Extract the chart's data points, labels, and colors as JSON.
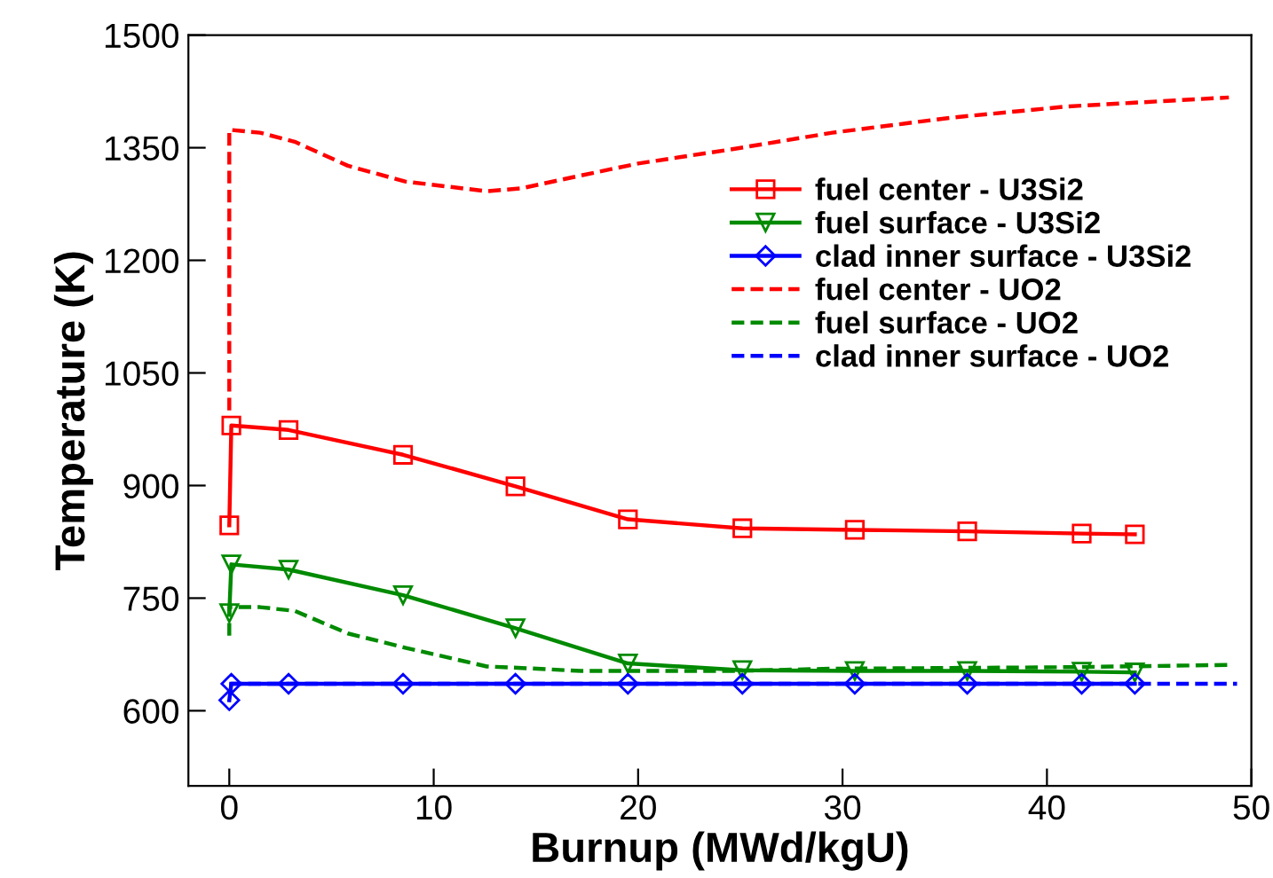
{
  "chart_data": {
    "type": "line",
    "xlabel": "Burnup (MWd/kgU)",
    "ylabel": "Temperature (K)",
    "xlim": [
      -2,
      50
    ],
    "xticks": [
      0,
      10,
      20,
      30,
      40,
      50
    ],
    "ylim": [
      500,
      1500
    ],
    "yticks": [
      600,
      750,
      900,
      1050,
      1200,
      1350,
      1500
    ],
    "grid": false,
    "legend": "right",
    "line_style": "solid",
    "series": [
      {
        "name": "fuel center - U3Si2",
        "color": "#ff0000",
        "marker": "square",
        "x": [
          0,
          0.1,
          2.9,
          8.5,
          14.0,
          19.5,
          25.1,
          30.6,
          36.1,
          41.7,
          44.3
        ],
        "values": [
          847,
          980,
          974,
          941,
          899,
          855,
          843,
          841,
          839,
          836,
          835
        ]
      },
      {
        "name": "fuel surface - U3Si2",
        "color": "#008a00",
        "marker": "triangle",
        "x": [
          0,
          0.1,
          2.9,
          8.5,
          14.0,
          19.5,
          25.1,
          30.6,
          36.1,
          41.7,
          44.3
        ],
        "values": [
          730,
          795,
          788,
          754,
          710,
          663,
          654,
          653,
          653,
          652,
          651
        ]
      },
      {
        "name": "clad inner surface - U3Si2",
        "color": "#0000ff",
        "marker": "diamond",
        "x": [
          0,
          0.1,
          2.9,
          8.5,
          14.0,
          19.5,
          25.1,
          30.6,
          36.1,
          41.7,
          44.3
        ],
        "values": [
          614,
          636,
          636,
          636,
          636,
          636,
          636,
          636,
          636,
          636,
          636
        ]
      },
      {
        "name": "fuel center - UO2",
        "color": "#ff0000",
        "marker": "none",
        "line_style": "dashed",
        "x": [
          0,
          0,
          1.5,
          3.2,
          5.8,
          8.6,
          12.6,
          14.3,
          17.2,
          20,
          24.6,
          29.5,
          35.3,
          41,
          48.9
        ],
        "values": [
          1000,
          1374,
          1370,
          1358,
          1326,
          1305,
          1292,
          1296,
          1313,
          1329,
          1348,
          1370,
          1390,
          1405,
          1417
        ]
      },
      {
        "name": "fuel surface - UO2",
        "color": "#008a00",
        "marker": "none",
        "line_style": "dashed",
        "x": [
          0,
          0,
          1.5,
          3.2,
          5.8,
          8.6,
          12.6,
          14.3,
          17.2,
          20,
          24.6,
          29.5,
          35.3,
          41,
          48.9
        ],
        "values": [
          700,
          738,
          738,
          733,
          703,
          684,
          659,
          657,
          653,
          653,
          653,
          656,
          657,
          658,
          661
        ]
      },
      {
        "name": "clad inner surface - UO2",
        "color": "#0000ff",
        "marker": "none",
        "line_style": "dashed",
        "x": [
          0,
          49.3
        ],
        "values": [
          636,
          636
        ]
      }
    ]
  }
}
